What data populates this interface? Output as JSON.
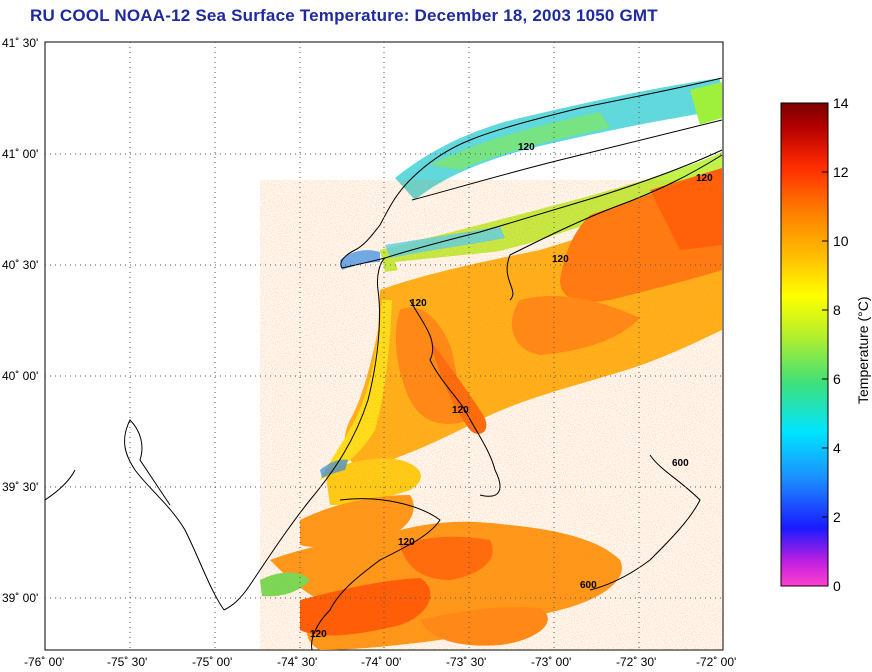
{
  "title": "RU COOL  NOAA-12  Sea Surface Temperature:  December 18, 2003 1050 GMT",
  "map": {
    "lon_ticks": [
      "-76˚ 00'",
      "-75˚ 30'",
      "-75˚ 00'",
      "-74˚ 30'",
      "-74˚ 00'",
      "-73˚ 30'",
      "-73˚ 00'",
      "-72˚ 30'",
      "-72˚ 00'"
    ],
    "lat_ticks": [
      "41˚ 30'",
      "41˚ 00'",
      "40˚ 30'",
      "40˚ 00'",
      "39˚ 30'",
      "39˚ 00'"
    ],
    "contour_labels": [
      "120",
      "120",
      "120",
      "120",
      "120",
      "120",
      "600",
      "600",
      "120"
    ]
  },
  "colorbar": {
    "label": "Temperature (°C)",
    "ticks": [
      "14",
      "12",
      "10",
      "8",
      "6",
      "4",
      "2",
      "0"
    ],
    "min": 0,
    "max": 14,
    "colors": [
      "#ff3fd0",
      "#8a2be2",
      "#1a1aff",
      "#1c8cff",
      "#00e5ff",
      "#3fe07a",
      "#b6f02a",
      "#ffff00",
      "#ffc000",
      "#ff7a00",
      "#ff2a00",
      "#b40000",
      "#7a0000"
    ]
  },
  "legend_colors": {
    "sst_warm": "#ff7a14",
    "sst_mid": "#ffc21a",
    "sst_cool": "#4fd0ff",
    "land": "#ffffff",
    "coast": "#000000"
  }
}
